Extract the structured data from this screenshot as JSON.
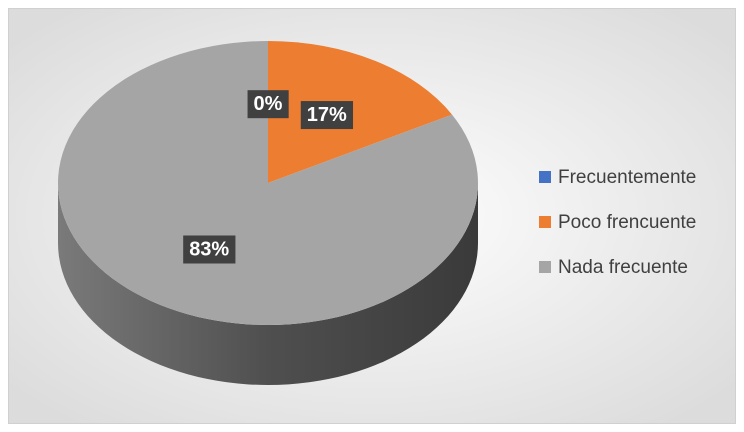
{
  "chart_data": {
    "type": "pie",
    "categories": [
      "Frecuentemente",
      "Poco frencuente",
      "Nada frecuente"
    ],
    "values": [
      0,
      17,
      83
    ],
    "value_labels": [
      "0%",
      "17%",
      "83%"
    ],
    "colors": [
      "#4472c4",
      "#ed7d31",
      "#a5a5a5"
    ],
    "legend": "right"
  }
}
